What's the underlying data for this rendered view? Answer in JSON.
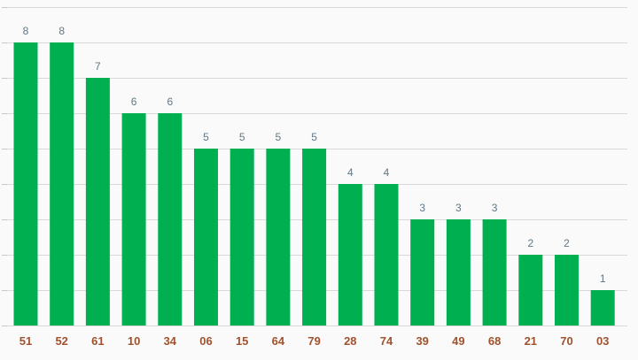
{
  "chart_data": {
    "type": "bar",
    "categories": [
      "51",
      "52",
      "61",
      "10",
      "34",
      "06",
      "15",
      "64",
      "79",
      "28",
      "74",
      "39",
      "49",
      "68",
      "21",
      "70",
      "03"
    ],
    "values": [
      8,
      8,
      7,
      6,
      6,
      5,
      5,
      5,
      5,
      4,
      4,
      3,
      3,
      3,
      2,
      2,
      1
    ],
    "title": "",
    "xlabel": "",
    "ylabel": "",
    "ylim": [
      0,
      9
    ],
    "grid": true,
    "data_labels": true,
    "colors": {
      "bar": "#00b050",
      "value_label": "#5f7786",
      "category_label": "#a0522d",
      "grid": "#d9d9d9",
      "background": "#fafafa"
    }
  }
}
